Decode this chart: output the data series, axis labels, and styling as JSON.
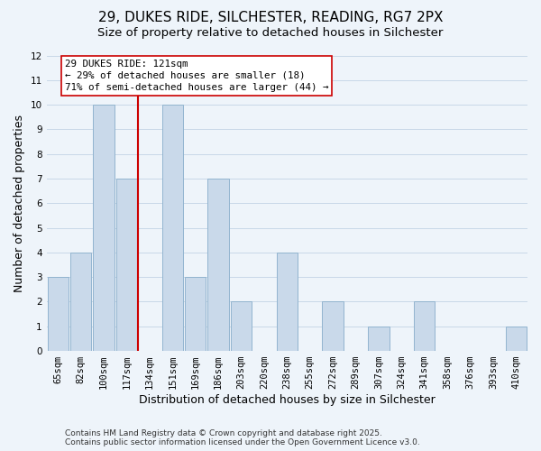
{
  "title": "29, DUKES RIDE, SILCHESTER, READING, RG7 2PX",
  "subtitle": "Size of property relative to detached houses in Silchester",
  "xlabel": "Distribution of detached houses by size in Silchester",
  "ylabel": "Number of detached properties",
  "bar_labels": [
    "65sqm",
    "82sqm",
    "100sqm",
    "117sqm",
    "134sqm",
    "151sqm",
    "169sqm",
    "186sqm",
    "203sqm",
    "220sqm",
    "238sqm",
    "255sqm",
    "272sqm",
    "289sqm",
    "307sqm",
    "324sqm",
    "341sqm",
    "358sqm",
    "376sqm",
    "393sqm",
    "410sqm"
  ],
  "bar_heights": [
    3,
    4,
    10,
    7,
    0,
    10,
    3,
    7,
    2,
    0,
    4,
    0,
    2,
    0,
    1,
    0,
    2,
    0,
    0,
    0,
    1
  ],
  "bar_color": "#c9d9ea",
  "bar_edge_color": "#92b4cf",
  "vline_x_idx": 3,
  "vline_color": "#cc0000",
  "annotation_text": "29 DUKES RIDE: 121sqm\n← 29% of detached houses are smaller (18)\n71% of semi-detached houses are larger (44) →",
  "annotation_box_color": "#ffffff",
  "annotation_box_edge": "#cc0000",
  "ylim": [
    0,
    12
  ],
  "yticks": [
    0,
    1,
    2,
    3,
    4,
    5,
    6,
    7,
    8,
    9,
    10,
    11,
    12
  ],
  "grid_color": "#c8d8e8",
  "bg_color": "#eef4fa",
  "plot_bg_color": "#eef4fa",
  "footer1": "Contains HM Land Registry data © Crown copyright and database right 2025.",
  "footer2": "Contains public sector information licensed under the Open Government Licence v3.0.",
  "title_fontsize": 11,
  "subtitle_fontsize": 9.5,
  "xlabel_fontsize": 9,
  "ylabel_fontsize": 9,
  "tick_fontsize": 7.5,
  "footer_fontsize": 6.5
}
